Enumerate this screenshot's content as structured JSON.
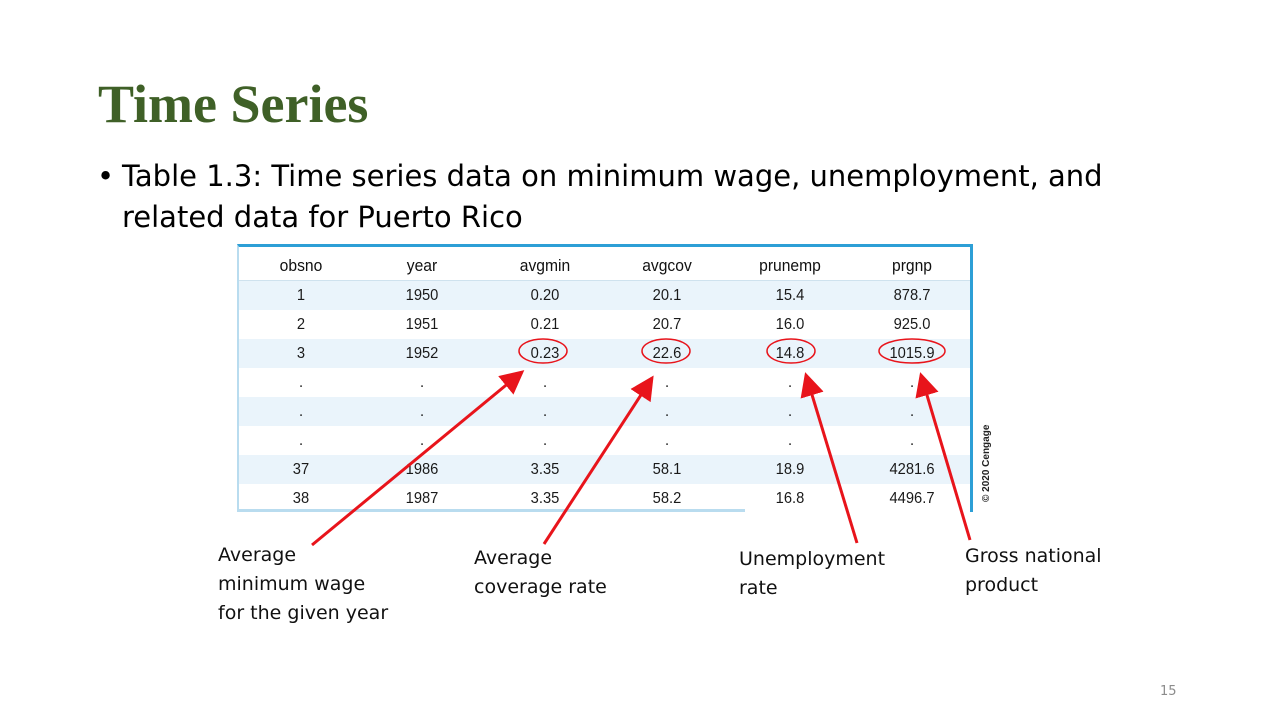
{
  "slide": {
    "title": "Time Series",
    "bullet_symbol": "•",
    "bullet_line1": "Table 1.3: Time series data on minimum wage, unemployment, and",
    "bullet_line2": "related data for Puerto Rico",
    "page_number": "15"
  },
  "table": {
    "headers": [
      "obsno",
      "year",
      "avgmin",
      "avgcov",
      "prunemp",
      "prgnp"
    ],
    "rows": [
      [
        "1",
        "1950",
        "0.20",
        "20.1",
        "15.4",
        "878.7"
      ],
      [
        "2",
        "1951",
        "0.21",
        "20.7",
        "16.0",
        "925.0"
      ],
      [
        "3",
        "1952",
        "0.23",
        "22.6",
        "14.8",
        "1015.9"
      ],
      [
        ".",
        ".",
        ".",
        ".",
        ".",
        "."
      ],
      [
        ".",
        ".",
        ".",
        ".",
        ".",
        "."
      ],
      [
        ".",
        ".",
        ".",
        ".",
        ".",
        "."
      ],
      [
        "37",
        "1986",
        "3.35",
        "58.1",
        "18.9",
        "4281.6"
      ],
      [
        "38",
        "1987",
        "3.35",
        "58.2",
        "16.8",
        "4496.7"
      ]
    ],
    "copyright": "© 2020 Cengage"
  },
  "callouts": {
    "avgmin": [
      "Average",
      "minimum wage",
      "for the given year"
    ],
    "avgcov": [
      "Average",
      "coverage rate"
    ],
    "prunemp": [
      "Unemployment",
      "rate"
    ],
    "prgnp": [
      "Gross national",
      "product"
    ]
  },
  "colors": {
    "title": "#3f6027",
    "table_border": "#2d9fd6",
    "row_shade": "#eaf4fb",
    "annotation": "#e8141b"
  }
}
